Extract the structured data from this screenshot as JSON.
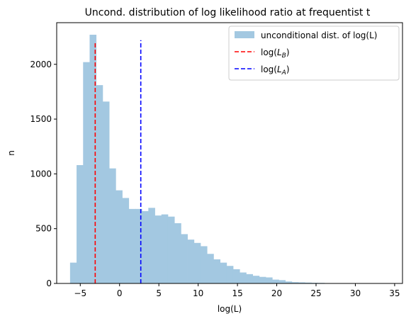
{
  "chart_data": {
    "type": "bar",
    "title": "Uncond. distribution of log likelihood ratio at frequentist  t",
    "xlabel": "log(L)",
    "ylabel": "n",
    "xlim": [
      -8,
      36
    ],
    "ylim": [
      0,
      2380
    ],
    "xticks": [
      -5,
      0,
      5,
      10,
      15,
      20,
      25,
      30,
      35
    ],
    "yticks": [
      0,
      500,
      1000,
      1500,
      2000
    ],
    "grid": false,
    "legend_position": "top-right",
    "histogram": {
      "name": "unconditional dist. of log(L)",
      "color": "#a3c8e1",
      "bin_start": -6.3,
      "bin_width": 0.83,
      "counts": [
        190,
        1080,
        2020,
        2270,
        1810,
        1660,
        1050,
        850,
        780,
        680,
        680,
        660,
        690,
        620,
        630,
        610,
        550,
        450,
        400,
        370,
        340,
        270,
        220,
        190,
        160,
        130,
        100,
        85,
        70,
        60,
        55,
        35,
        30,
        18,
        12,
        10,
        8,
        6,
        5,
        3,
        3,
        2,
        2,
        2,
        2,
        1,
        2,
        1
      ]
    },
    "vlines": [
      {
        "name": "log($L_B$)",
        "x": -3.1,
        "ymax": 2210,
        "color": "#ff0000",
        "legend_main": "log(",
        "legend_sub": "B",
        "legend_end": ")"
      },
      {
        "name": "log($L_A$)",
        "x": 2.7,
        "ymax": 2220,
        "color": "#0000ff",
        "legend_main": "log(",
        "legend_sub": "A",
        "legend_end": ")"
      }
    ]
  }
}
